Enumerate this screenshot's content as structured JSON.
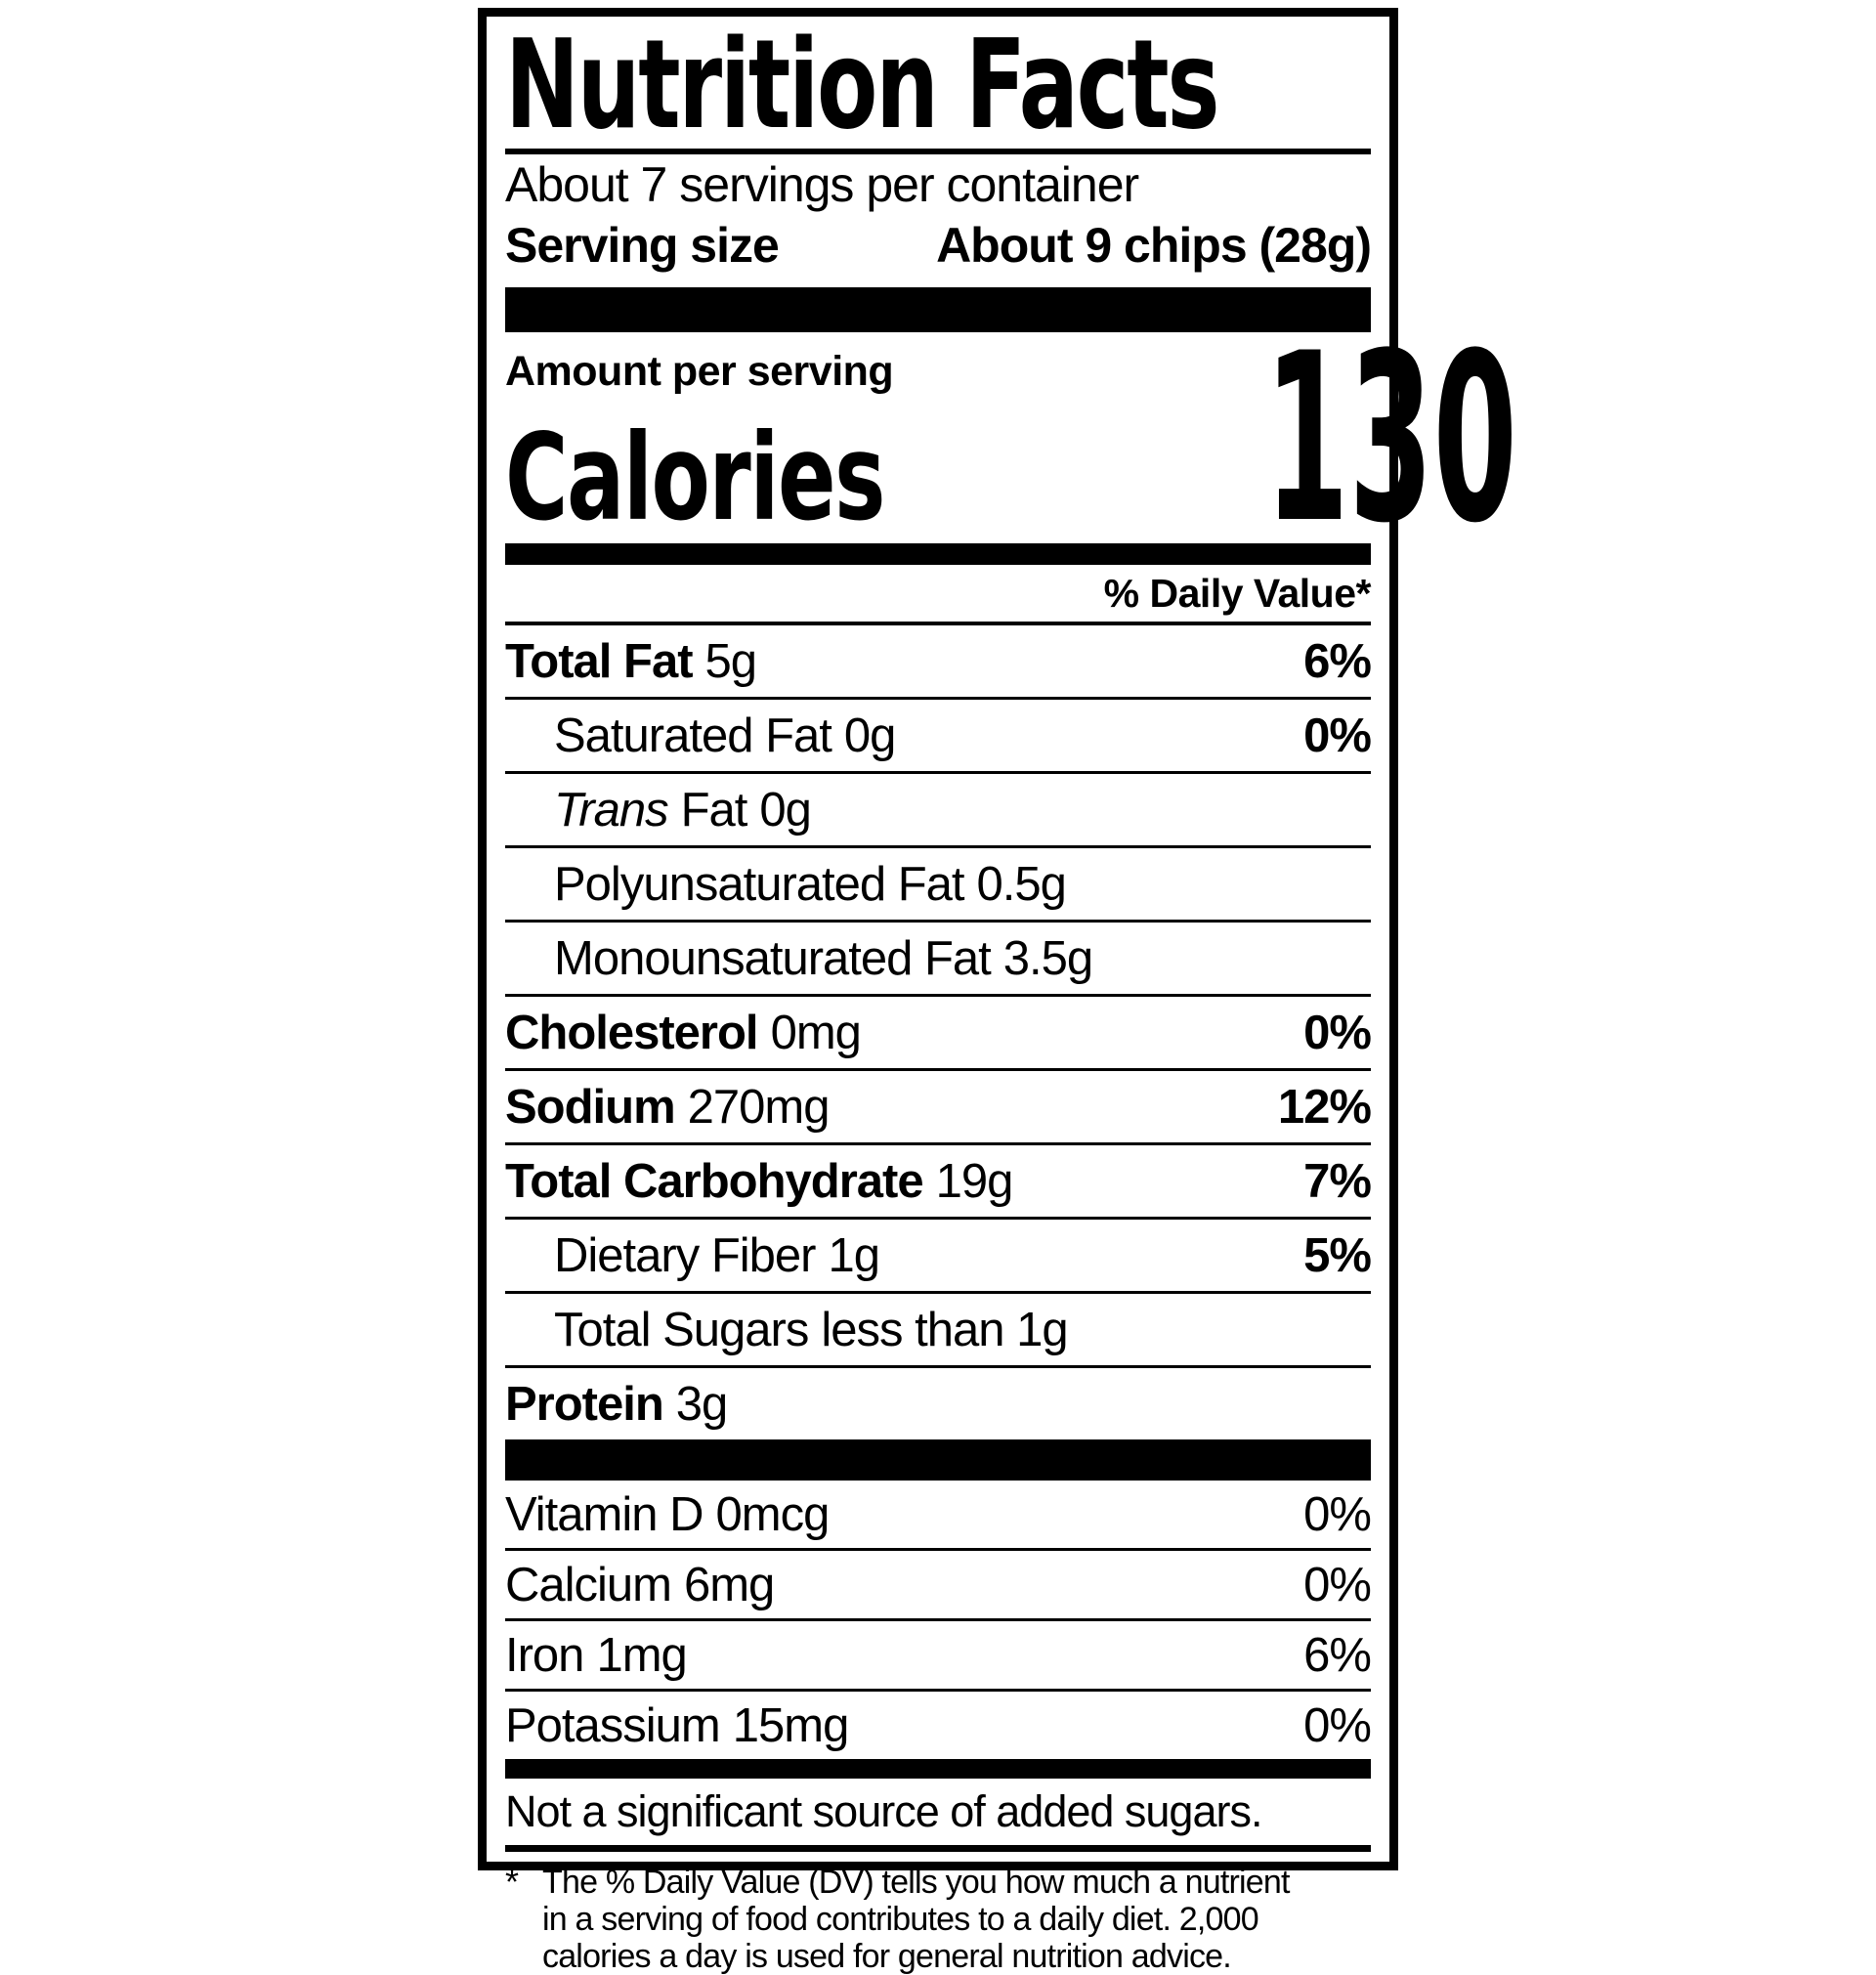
{
  "label": {
    "title": "Nutrition Facts",
    "servings_per_container": "About 7 servings per container",
    "serving_size_label": "Serving size",
    "serving_size_value": "About 9 chips (28g)",
    "amount_per_serving": "Amount per serving",
    "calories_label": "Calories",
    "calories_value": "130",
    "daily_value_header": "% Daily Value*",
    "colors": {
      "ink": "#000000",
      "paper": "#ffffff"
    },
    "nutrients": [
      {
        "name": "Total Fat",
        "amount": "5g",
        "dv": "6%"
      },
      {
        "name": "Saturated Fat",
        "amount": "0g",
        "dv": "0%"
      },
      {
        "name_italic": "Trans",
        "name_rest": "Fat",
        "amount": "0g",
        "dv": ""
      },
      {
        "name": "Polyunsaturated Fat",
        "amount": "0.5g",
        "dv": ""
      },
      {
        "name": "Monounsaturated Fat",
        "amount": "3.5g",
        "dv": ""
      },
      {
        "name": "Cholesterol",
        "amount": "0mg",
        "dv": "0%"
      },
      {
        "name": "Sodium",
        "amount": "270mg",
        "dv": "12%"
      },
      {
        "name": "Total Carbohydrate",
        "amount": "19g",
        "dv": "7%"
      },
      {
        "name": "Dietary Fiber",
        "amount": "1g",
        "dv": "5%"
      },
      {
        "name": "Total Sugars",
        "amount": "less than 1g",
        "dv": ""
      },
      {
        "name": "Protein",
        "amount": "3g",
        "dv": ""
      }
    ],
    "vitamins": [
      {
        "name": "Vitamin D",
        "amount": "0mcg",
        "dv": "0%"
      },
      {
        "name": "Calcium",
        "amount": "6mg",
        "dv": "0%"
      },
      {
        "name": "Iron",
        "amount": "1mg",
        "dv": "6%"
      },
      {
        "name": "Potassium",
        "amount": "15mg",
        "dv": "0%"
      }
    ],
    "added_sugars_note": "Not a significant source of added sugars.",
    "footnote_symbol": "*",
    "footnote_lines": [
      "The % Daily Value (DV) tells you how much a nutrient",
      "in a serving of food contributes to a daily diet. 2,000",
      "calories a day is used for general nutrition advice."
    ]
  }
}
